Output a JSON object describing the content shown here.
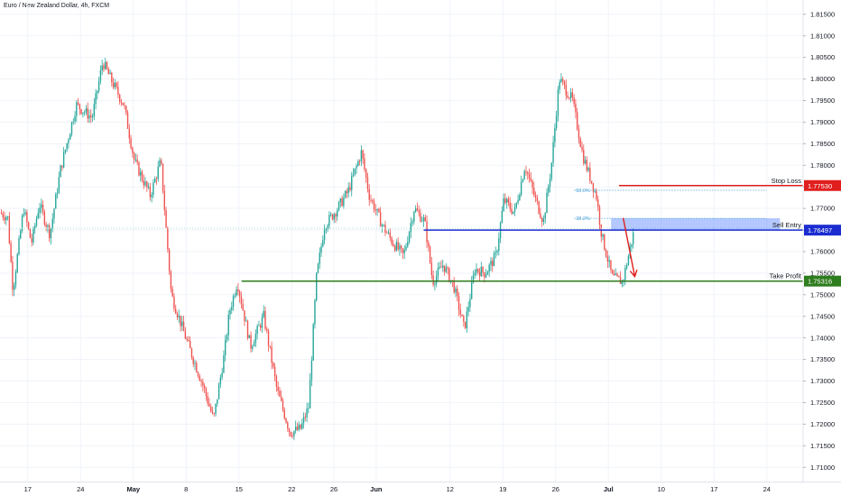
{
  "header": {
    "title": "Euro / New Zealand Dollar, 4h, FXCM"
  },
  "chart_data": {
    "type": "candlestick",
    "symbol": "Euro / New Zealand Dollar",
    "interval": "4h",
    "source": "FXCM",
    "yticks": [
      1.71,
      1.715,
      1.72,
      1.725,
      1.73,
      1.735,
      1.74,
      1.745,
      1.75,
      1.755,
      1.76,
      1.765,
      1.77,
      1.775,
      1.78,
      1.785,
      1.79,
      1.795,
      1.8,
      1.805,
      1.81,
      1.815
    ],
    "ytick_labels": [
      "1.71000",
      "1.71500",
      "1.72000",
      "1.72500",
      "1.73000",
      "1.73500",
      "1.74000",
      "1.74500",
      "1.75000",
      "1.75500",
      "1.76000",
      "1.76500",
      "1.77000",
      "1.77500",
      "1.78000",
      "1.78500",
      "1.79000",
      "1.79500",
      "1.80000",
      "1.80500",
      "1.81000",
      "1.81500"
    ],
    "ylim": [
      1.7067,
      1.8183
    ],
    "xlim": [
      -0.15,
      4.6
    ],
    "xticks": [
      {
        "label": "17",
        "v": 0.5
      },
      {
        "label": "24",
        "v": 1.5
      },
      {
        "label": "May",
        "v": 2.5,
        "bold": true
      },
      {
        "label": "8",
        "v": 3.5
      },
      {
        "label": "15",
        "v": 4.5
      },
      {
        "label": "22",
        "v": 5.5
      },
      {
        "label": "26",
        "v": 6.3
      },
      {
        "label": "Jun",
        "v": 7.1,
        "bold": true
      },
      {
        "label": "12",
        "v": 8.5
      },
      {
        "label": "19",
        "v": 9.5
      },
      {
        "label": "26",
        "v": 10.5
      },
      {
        "label": "Jul",
        "v": 11.5,
        "bold": true
      },
      {
        "label": "10",
        "v": 12.5
      },
      {
        "label": "17",
        "v": 13.5
      },
      {
        "label": "24",
        "v": 14.5
      }
    ],
    "price_path": [
      [
        0.0,
        1.769
      ],
      [
        0.15,
        1.768
      ],
      [
        0.25,
        1.751
      ],
      [
        0.45,
        1.77
      ],
      [
        0.6,
        1.762
      ],
      [
        0.75,
        1.771
      ],
      [
        0.95,
        1.764
      ],
      [
        1.15,
        1.779
      ],
      [
        1.45,
        1.794
      ],
      [
        1.75,
        1.791
      ],
      [
        1.95,
        1.804
      ],
      [
        2.1,
        1.8
      ],
      [
        2.35,
        1.794
      ],
      [
        2.55,
        1.781
      ],
      [
        2.85,
        1.773
      ],
      [
        3.05,
        1.781
      ],
      [
        3.25,
        1.75
      ],
      [
        3.55,
        1.739
      ],
      [
        3.85,
        1.729
      ],
      [
        4.05,
        1.721
      ],
      [
        4.25,
        1.736
      ],
      [
        4.35,
        1.746
      ],
      [
        4.5,
        1.753
      ],
      [
        4.75,
        1.738
      ],
      [
        5.0,
        1.745
      ],
      [
        5.25,
        1.728
      ],
      [
        5.5,
        1.718
      ],
      [
        5.7,
        1.719
      ],
      [
        5.85,
        1.724
      ],
      [
        6.0,
        1.754
      ],
      [
        6.15,
        1.766
      ],
      [
        6.4,
        1.77
      ],
      [
        6.6,
        1.774
      ],
      [
        6.85,
        1.783
      ],
      [
        7.0,
        1.773
      ],
      [
        7.25,
        1.766
      ],
      [
        7.45,
        1.762
      ],
      [
        7.65,
        1.759
      ],
      [
        7.85,
        1.77
      ],
      [
        8.05,
        1.767
      ],
      [
        8.2,
        1.753
      ],
      [
        8.4,
        1.757
      ],
      [
        8.6,
        1.752
      ],
      [
        8.8,
        1.742
      ],
      [
        9.0,
        1.756
      ],
      [
        9.2,
        1.755
      ],
      [
        9.4,
        1.759
      ],
      [
        9.55,
        1.772
      ],
      [
        9.75,
        1.769
      ],
      [
        9.95,
        1.78
      ],
      [
        10.15,
        1.772
      ],
      [
        10.3,
        1.767
      ],
      [
        10.45,
        1.78
      ],
      [
        10.6,
        1.8
      ],
      [
        10.85,
        1.795
      ],
      [
        11.05,
        1.782
      ],
      [
        11.3,
        1.773
      ],
      [
        11.4,
        1.764
      ],
      [
        11.6,
        1.754
      ],
      [
        11.8,
        1.753
      ],
      [
        12.0,
        1.764
      ]
    ],
    "xlabel": "",
    "ylabel": "",
    "lines": [
      {
        "name": "Stop Loss",
        "value": 1.7753,
        "label": "1.77530",
        "color": "#e01e1e",
        "x0": 11.7,
        "x1": 14.75
      },
      {
        "name": "Sell Entry",
        "value": 1.76497,
        "label": "1.76497",
        "color": "#1a2cd0",
        "x0": 8.0,
        "x1": 14.75
      },
      {
        "name": "Take Profit",
        "value": 1.75316,
        "label": "1.75316",
        "color": "#2e7d1e",
        "x0": 4.55,
        "x1": 14.75
      }
    ],
    "fib_levels": [
      {
        "label": "50.0%",
        "value": 1.7742,
        "x0": 10.85,
        "x1": 14.5
      },
      {
        "label": "38.2%",
        "value": 1.7677,
        "x0": 10.85,
        "x1": 14.5
      }
    ],
    "zone": {
      "low": 1.76497,
      "high": 1.76772,
      "x0": 11.55,
      "x1": 14.75,
      "color": "#2962ff"
    },
    "arrow": {
      "x0": 11.78,
      "y0": 1.7678,
      "x1": 12.0,
      "y1": 1.7542,
      "color": "#e01e1e"
    },
    "last_price_guide": 1.7654,
    "colors": {
      "up": "#26a69a",
      "down": "#ef5350",
      "grid": "#f0f3fa",
      "axis_text": "#131722"
    }
  }
}
